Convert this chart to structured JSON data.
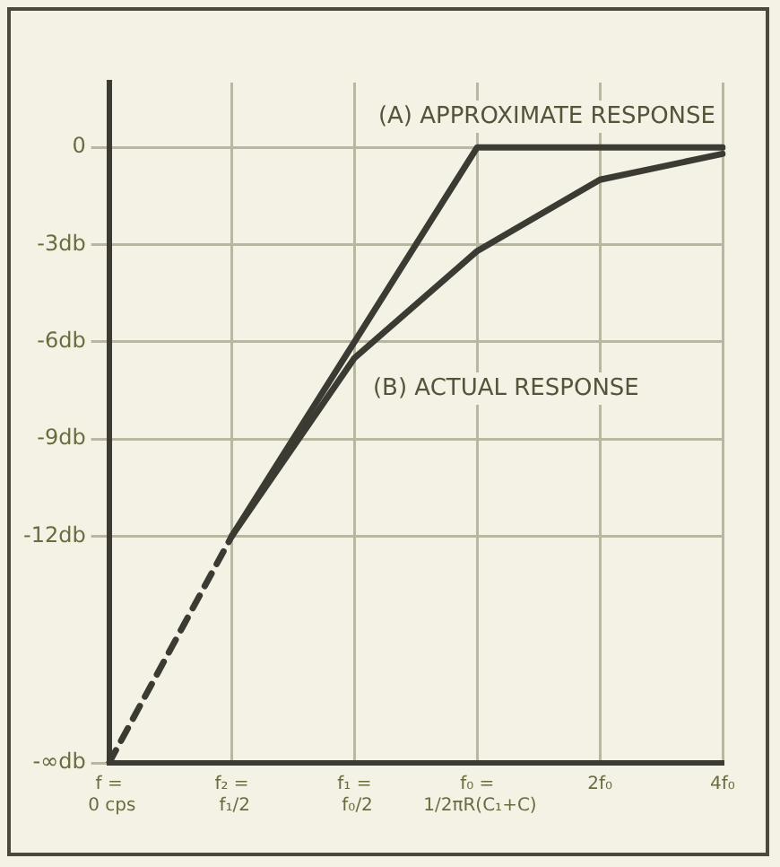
{
  "chart_data": {
    "type": "line",
    "categories": [
      "f = 0 cps",
      "f₂ = f₁/2",
      "f₁ = f₀/2",
      "f₀ = 1/2πR(C₁+C)",
      "2f₀",
      "4f₀"
    ],
    "series": [
      {
        "name": null,
        "color": "#3b3b33",
        "line_style": "dashed",
        "values": [
          -19,
          -12,
          null,
          null,
          null,
          null
        ]
      },
      {
        "color": "#3b3b33",
        "values": [
          null,
          -12,
          -6,
          0,
          0,
          0
        ]
      },
      {
        "color": "#3b3b33",
        "values": [
          null,
          -12,
          -6.5,
          -3.2,
          -1,
          -0.2
        ]
      }
    ],
    "ylim": [
      -19,
      2
    ],
    "yticks": [
      {
        "value": -19,
        "label": "-∞db"
      },
      {
        "value": -12,
        "label": "-12db"
      },
      {
        "value": -9,
        "label": "-9db"
      },
      {
        "value": -6,
        "label": "-6db"
      },
      {
        "value": -3,
        "label": "-3db"
      },
      0
    ],
    "grid": true,
    "marker": "none",
    "legend": false,
    "annotations": [
      "(A) APPROXIMATE RESPONSE",
      "(B) ACTUAL RESPONSE"
    ]
  }
}
